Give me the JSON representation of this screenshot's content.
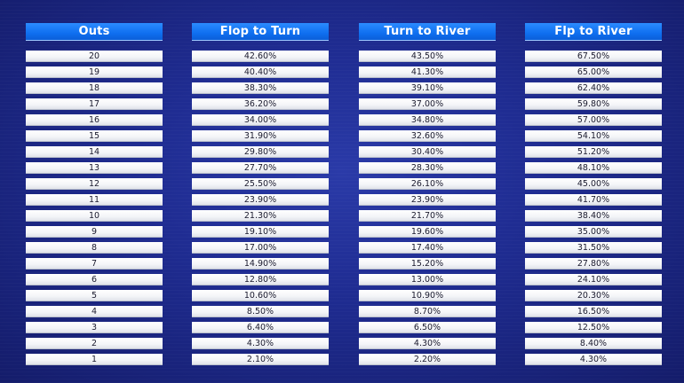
{
  "table": {
    "headers": [
      "Outs",
      "Flop to Turn",
      "Turn to River",
      "Flp to River"
    ],
    "rows": [
      [
        "20",
        "42.60%",
        "43.50%",
        "67.50%"
      ],
      [
        "19",
        "40.40%",
        "41.30%",
        "65.00%"
      ],
      [
        "18",
        "38.30%",
        "39.10%",
        "62.40%"
      ],
      [
        "17",
        "36.20%",
        "37.00%",
        "59.80%"
      ],
      [
        "16",
        "34.00%",
        "34.80%",
        "57.00%"
      ],
      [
        "15",
        "31.90%",
        "32.60%",
        "54.10%"
      ],
      [
        "14",
        "29.80%",
        "30.40%",
        "51.20%"
      ],
      [
        "13",
        "27.70%",
        "28.30%",
        "48.10%"
      ],
      [
        "12",
        "25.50%",
        "26.10%",
        "45.00%"
      ],
      [
        "11",
        "23.90%",
        "23.90%",
        "41.70%"
      ],
      [
        "10",
        "21.30%",
        "21.70%",
        "38.40%"
      ],
      [
        "9",
        "19.10%",
        "19.60%",
        "35.00%"
      ],
      [
        "8",
        "17.00%",
        "17.40%",
        "31.50%"
      ],
      [
        "7",
        "14.90%",
        "15.20%",
        "27.80%"
      ],
      [
        "6",
        "12.80%",
        "13.00%",
        "24.10%"
      ],
      [
        "5",
        "10.60%",
        "10.90%",
        "20.30%"
      ],
      [
        "4",
        "8.50%",
        "8.70%",
        "16.50%"
      ],
      [
        "3",
        "6.40%",
        "6.50%",
        "12.50%"
      ],
      [
        "2",
        "4.30%",
        "4.30%",
        "8.40%"
      ],
      [
        "1",
        "2.10%",
        "2.20%",
        "4.30%"
      ]
    ]
  }
}
